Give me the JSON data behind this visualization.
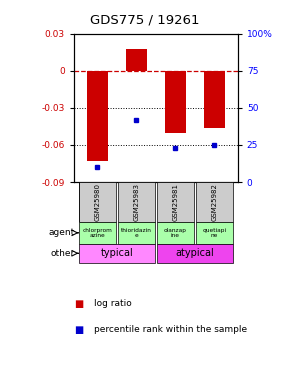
{
  "title": "GDS775 / 19261",
  "samples": [
    "GSM25980",
    "GSM25983",
    "GSM25981",
    "GSM25982"
  ],
  "log_ratios": [
    -0.073,
    0.018,
    -0.05,
    -0.046
  ],
  "percentile_ranks": [
    10,
    42,
    23,
    25
  ],
  "ylim_left": [
    -0.09,
    0.03
  ],
  "yticks_left": [
    0.03,
    0,
    -0.03,
    -0.06,
    -0.09
  ],
  "ytick_labels_left": [
    "0.03",
    "0",
    "-0.03",
    "-0.06",
    "-0.09"
  ],
  "ylim_right": [
    0,
    100
  ],
  "yticks_right": [
    0,
    25,
    50,
    75,
    100
  ],
  "ytick_labels_right": [
    "0",
    "25",
    "50",
    "75",
    "100%"
  ],
  "agents": [
    "chlorprom\nazine",
    "thioridazin\ne",
    "olanzap\nine",
    "quetiapi\nne"
  ],
  "bar_color": "#cc0000",
  "dot_color": "#0000cc",
  "zero_line_color": "#cc0000",
  "sample_bg_color": "#cccccc",
  "agent_bg_color": "#aaffaa",
  "typical_bg": "#ff88ff",
  "atypical_bg": "#ee44ee",
  "bar_width": 0.55
}
